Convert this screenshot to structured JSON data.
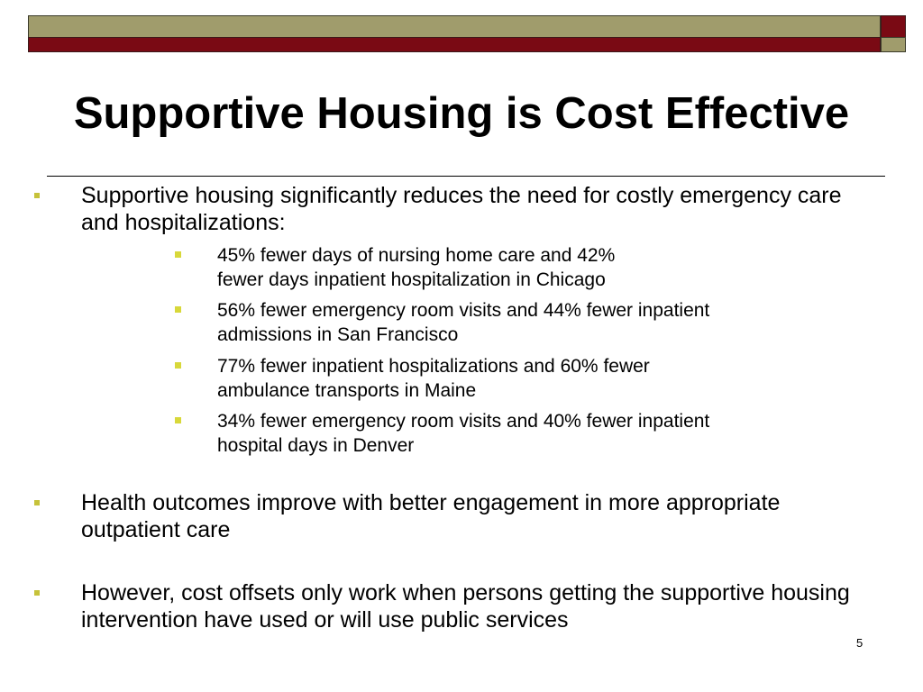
{
  "slide": {
    "title": "Supportive Housing is Cost Effective",
    "page_number": "5",
    "colors": {
      "olive": "#a09c6c",
      "maroon": "#7a0a14",
      "bullet": "#c6c23a"
    }
  },
  "bullets": [
    {
      "text": "Supportive housing significantly reduces the need for costly emergency care and hospitalizations:",
      "sub": [
        {
          "line1": "45% fewer days of nursing home care and 42%",
          "line2": "fewer days inpatient hospitalization in Chicago"
        },
        {
          "line1": "56% fewer emergency room visits and 44% fewer inpatient",
          "line2": "admissions in San Francisco"
        },
        {
          "line1": "77% fewer inpatient hospitalizations and 60% fewer",
          "line2": "ambulance transports in Maine"
        },
        {
          "line1": "34% fewer emergency room visits and 40% fewer inpatient",
          "line2": "hospital days in Denver"
        }
      ]
    },
    {
      "text": "Health outcomes improve with better engagement in more appropriate outpatient care"
    },
    {
      "text": "However, cost offsets only work when persons getting the supportive housing intervention have used or will use public services"
    }
  ]
}
